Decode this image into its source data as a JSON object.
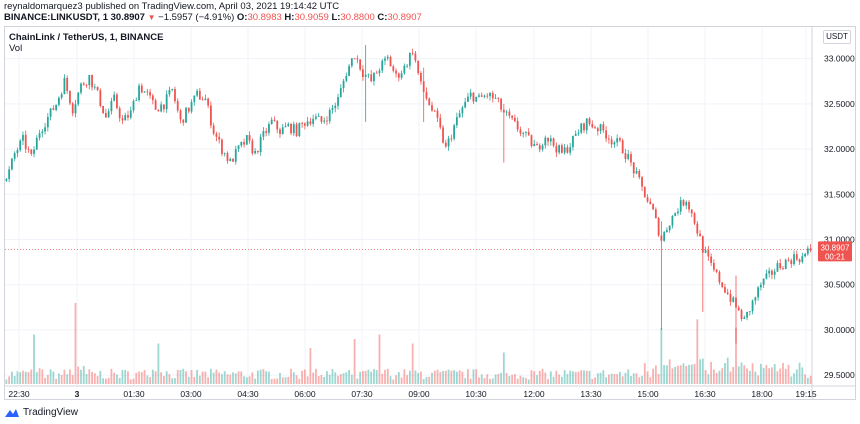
{
  "header": {
    "line1": "reynaldomarquez3 published on TradingView.com, April 03, 2021 19:14:42 UTC",
    "symbol": "BINANCE:LINKUSDT, 1",
    "last": "30.8907",
    "change": "−1.5957 (−4.91%)",
    "o_label": "O:",
    "o_value": "30.8983",
    "h_label": "H:",
    "h_value": "30.9059",
    "l_label": "L:",
    "l_value": "30.8800",
    "c_label": "C:",
    "c_value": "30.8907"
  },
  "legend": {
    "title": "ChainLink / TetherUS, 1, BINANCE",
    "volume_label": "Vol"
  },
  "price_scale": {
    "unit": "USDT"
  },
  "last_price_badge": {
    "price": "30.8907",
    "countdown": "00:21",
    "color": "#ef5350"
  },
  "footer": {
    "brand": "TradingView"
  },
  "colors": {
    "up": "#26a69a",
    "down": "#ef5350",
    "grid": "#f0f3fa"
  },
  "chart_data": {
    "type": "candlestick",
    "title": "ChainLink / TetherUS, 1, BINANCE",
    "ylim": [
      29.38,
      33.35
    ],
    "y_ticks": [
      "33.0000",
      "32.5000",
      "32.0000",
      "31.5000",
      "31.0000",
      "30.5000",
      "30.0000",
      "29.5000"
    ],
    "x_ticks": [
      "22:30",
      "3",
      "01:30",
      "03:00",
      "04:30",
      "06:00",
      "07:30",
      "09:00",
      "10:30",
      "12:00",
      "13:30",
      "15:00",
      "16:30",
      "18:00",
      "19:15"
    ],
    "price_path": [
      [
        0,
        31.65
      ],
      [
        3,
        31.95
      ],
      [
        6,
        32.1
      ],
      [
        9,
        31.9
      ],
      [
        12,
        32.2
      ],
      [
        15,
        32.35
      ],
      [
        18,
        32.5
      ],
      [
        21,
        32.75
      ],
      [
        24,
        32.45
      ],
      [
        27,
        32.7
      ],
      [
        30,
        32.8
      ],
      [
        33,
        32.6
      ],
      [
        36,
        32.35
      ],
      [
        39,
        32.55
      ],
      [
        42,
        32.3
      ],
      [
        45,
        32.4
      ],
      [
        48,
        32.7
      ],
      [
        51,
        32.6
      ],
      [
        54,
        32.45
      ],
      [
        57,
        32.5
      ],
      [
        60,
        32.65
      ],
      [
        63,
        32.3
      ],
      [
        66,
        32.45
      ],
      [
        69,
        32.6
      ],
      [
        72,
        32.55
      ],
      [
        75,
        32.2
      ],
      [
        78,
        32.0
      ],
      [
        81,
        31.85
      ],
      [
        84,
        32.0
      ],
      [
        87,
        32.1
      ],
      [
        90,
        31.95
      ],
      [
        93,
        32.15
      ],
      [
        96,
        32.3
      ],
      [
        99,
        32.2
      ],
      [
        102,
        32.25
      ],
      [
        105,
        32.2
      ],
      [
        108,
        32.3
      ],
      [
        111,
        32.35
      ],
      [
        114,
        32.3
      ],
      [
        117,
        32.4
      ],
      [
        120,
        32.55
      ],
      [
        123,
        32.85
      ],
      [
        126,
        33.05
      ],
      [
        129,
        32.85
      ],
      [
        132,
        32.75
      ],
      [
        135,
        32.9
      ],
      [
        138,
        33.0
      ],
      [
        141,
        32.8
      ],
      [
        144,
        32.9
      ],
      [
        147,
        33.1
      ],
      [
        150,
        32.7
      ],
      [
        153,
        32.5
      ],
      [
        156,
        32.3
      ],
      [
        159,
        32.0
      ],
      [
        162,
        32.25
      ],
      [
        165,
        32.45
      ],
      [
        168,
        32.6
      ],
      [
        171,
        32.55
      ],
      [
        174,
        32.6
      ],
      [
        177,
        32.55
      ],
      [
        180,
        32.4
      ],
      [
        183,
        32.3
      ],
      [
        186,
        32.2
      ],
      [
        189,
        32.1
      ],
      [
        192,
        32.0
      ],
      [
        195,
        32.15
      ],
      [
        198,
        32.05
      ],
      [
        201,
        31.95
      ],
      [
        204,
        32.05
      ],
      [
        207,
        32.2
      ],
      [
        210,
        32.3
      ],
      [
        213,
        32.25
      ],
      [
        216,
        32.2
      ],
      [
        219,
        32.1
      ],
      [
        222,
        32.05
      ],
      [
        225,
        31.9
      ],
      [
        228,
        31.7
      ],
      [
        231,
        31.5
      ],
      [
        234,
        31.3
      ],
      [
        237,
        31.0
      ],
      [
        240,
        31.2
      ],
      [
        243,
        31.35
      ],
      [
        246,
        31.45
      ],
      [
        249,
        31.2
      ],
      [
        252,
        30.9
      ],
      [
        255,
        30.7
      ],
      [
        258,
        30.55
      ],
      [
        261,
        30.4
      ],
      [
        264,
        30.25
      ],
      [
        267,
        30.1
      ],
      [
        270,
        30.3
      ],
      [
        273,
        30.5
      ],
      [
        276,
        30.6
      ],
      [
        279,
        30.7
      ],
      [
        282,
        30.75
      ],
      [
        285,
        30.8
      ],
      [
        288,
        30.8
      ],
      [
        291,
        30.89
      ]
    ],
    "spikes": [
      [
        180,
        31.85,
        32.5
      ],
      [
        237,
        30.0,
        31.2
      ],
      [
        252,
        30.2,
        31.0
      ],
      [
        264,
        29.85,
        30.6
      ],
      [
        130,
        32.3,
        33.15
      ],
      [
        151,
        32.3,
        32.9
      ]
    ],
    "volume_peaks": [
      [
        10,
        0.55
      ],
      [
        25,
        0.9
      ],
      [
        55,
        0.45
      ],
      [
        110,
        0.4
      ],
      [
        126,
        0.5
      ],
      [
        135,
        0.55
      ],
      [
        147,
        0.45
      ],
      [
        237,
        0.55
      ],
      [
        250,
        0.65
      ],
      [
        264,
        0.6
      ],
      [
        180,
        0.35
      ]
    ]
  }
}
